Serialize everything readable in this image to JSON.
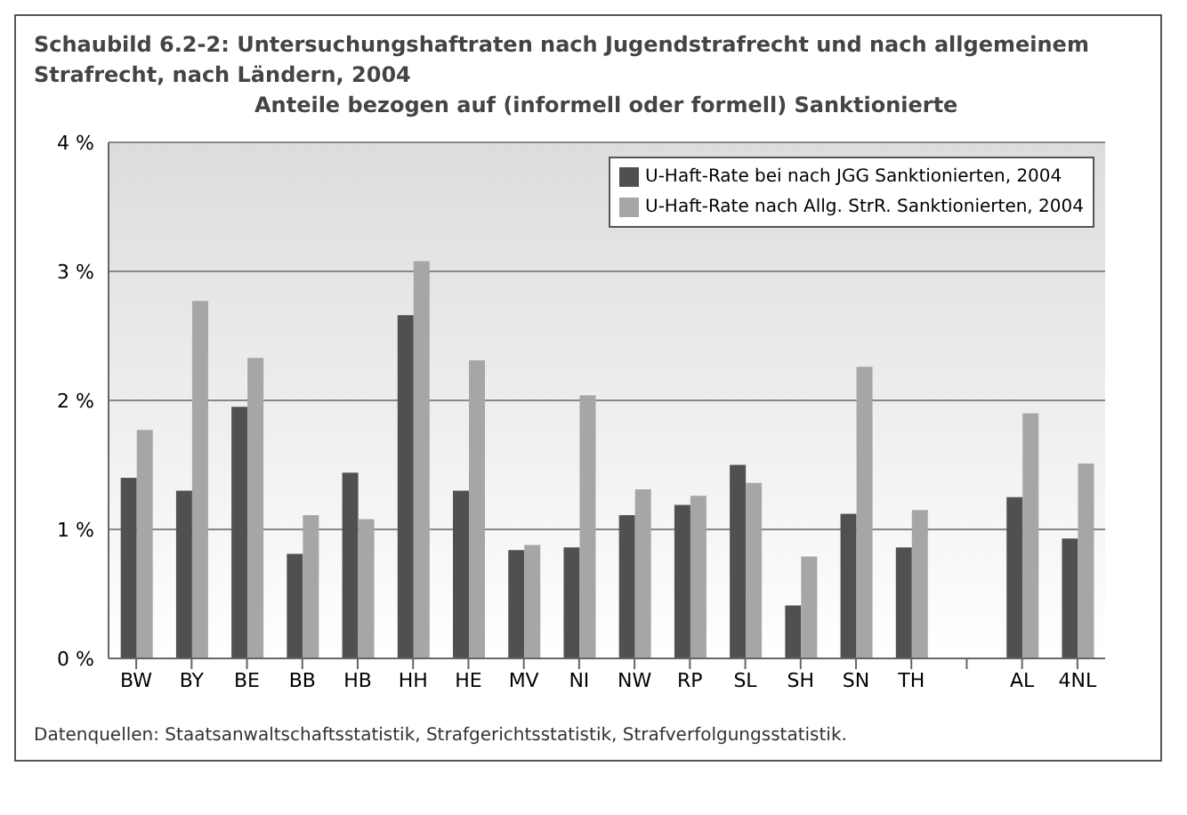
{
  "chart_data": {
    "type": "bar",
    "title": "Schaubild 6.2-2:   Untersuchungshaftraten nach Jugendstrafrecht und nach allgemeinem Strafrecht, nach Ländern, 2004",
    "subtitle": "Anteile bezogen auf (informell oder formell) Sanktionierte",
    "categories": [
      "BW",
      "BY",
      "BE",
      "BB",
      "HB",
      "HH",
      "HE",
      "MV",
      "NI",
      "NW",
      "RP",
      "SL",
      "SH",
      "SN",
      "TH",
      null,
      "AL",
      "4NL"
    ],
    "series": [
      {
        "name": "U-Haft-Rate bei nach JGG Sanktionierten, 2004",
        "color": "#505050",
        "values": [
          1.4,
          1.3,
          1.95,
          0.81,
          1.44,
          2.66,
          1.3,
          0.84,
          0.86,
          1.11,
          1.19,
          1.5,
          0.41,
          1.12,
          0.86,
          null,
          1.25,
          0.93
        ]
      },
      {
        "name": "U-Haft-Rate nach Allg. StrR. Sanktionierten, 2004",
        "color": "#a6a6a6",
        "values": [
          1.77,
          2.77,
          2.33,
          1.11,
          1.08,
          3.08,
          2.31,
          0.88,
          2.04,
          1.31,
          1.26,
          1.36,
          0.79,
          2.26,
          1.15,
          null,
          1.9,
          1.51
        ]
      }
    ],
    "ylim": [
      0,
      4
    ],
    "yticks": [
      {
        "value": 0,
        "label": "0 %"
      },
      {
        "value": 1,
        "label": "1 %"
      },
      {
        "value": 2,
        "label": "2 %"
      },
      {
        "value": 3,
        "label": "3 %"
      },
      {
        "value": 4,
        "label": "4 %"
      }
    ],
    "grid": "y",
    "legend": "top right",
    "annotations": [
      "Datenquellen:  Staatsanwaltschaftsstatistik, Strafgerichtsstatistik, Strafverfolgungsstatistik."
    ]
  }
}
